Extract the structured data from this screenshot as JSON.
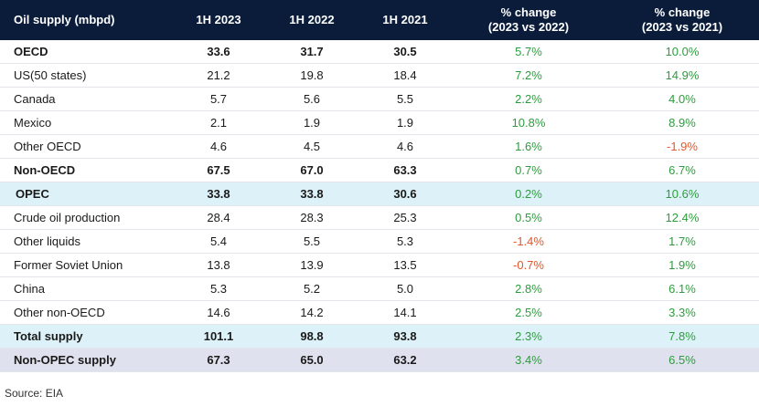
{
  "table": {
    "headers": [
      "Oil supply (mbpd)",
      "1H 2023",
      "1H 2022",
      "1H 2021",
      "% change\n(2023 vs 2022)",
      "% change\n(2023 vs 2021)"
    ],
    "rows": [
      {
        "label": "OECD",
        "v2023": "33.6",
        "v2022": "31.7",
        "v2021": "30.5",
        "chg1": "5.7%",
        "chg2": "10.0%",
        "style": "bold",
        "chg1_dir": "pos",
        "chg2_dir": "pos"
      },
      {
        "label": "US(50 states)",
        "v2023": "21.2",
        "v2022": "19.8",
        "v2021": "18.4",
        "chg1": "7.2%",
        "chg2": "14.9%",
        "style": "normal",
        "chg1_dir": "pos",
        "chg2_dir": "pos"
      },
      {
        "label": "Canada",
        "v2023": "5.7",
        "v2022": "5.6",
        "v2021": "5.5",
        "chg1": "2.2%",
        "chg2": "4.0%",
        "style": "normal",
        "chg1_dir": "pos",
        "chg2_dir": "pos"
      },
      {
        "label": "Mexico",
        "v2023": "2.1",
        "v2022": "1.9",
        "v2021": "1.9",
        "chg1": "10.8%",
        "chg2": "8.9%",
        "style": "normal",
        "chg1_dir": "pos",
        "chg2_dir": "pos"
      },
      {
        "label": "Other OECD",
        "v2023": "4.6",
        "v2022": "4.5",
        "v2021": "4.6",
        "chg1": "1.6%",
        "chg2": "-1.9%",
        "style": "normal",
        "chg1_dir": "pos",
        "chg2_dir": "neg"
      },
      {
        "label": "Non-OECD",
        "v2023": "67.5",
        "v2022": "67.0",
        "v2021": "63.3",
        "chg1": "0.7%",
        "chg2": "6.7%",
        "style": "bold",
        "chg1_dir": "pos",
        "chg2_dir": "pos"
      },
      {
        "label": "OPEC",
        "v2023": "33.8",
        "v2022": "33.8",
        "v2021": "30.6",
        "chg1": "0.2%",
        "chg2": "10.6%",
        "style": "opec",
        "chg1_dir": "pos",
        "chg2_dir": "pos"
      },
      {
        "label": "Crude oil production",
        "v2023": "28.4",
        "v2022": "28.3",
        "v2021": "25.3",
        "chg1": "0.5%",
        "chg2": "12.4%",
        "style": "normal",
        "chg1_dir": "pos",
        "chg2_dir": "pos"
      },
      {
        "label": "Other liquids",
        "v2023": "5.4",
        "v2022": "5.5",
        "v2021": "5.3",
        "chg1": "-1.4%",
        "chg2": "1.7%",
        "style": "normal",
        "chg1_dir": "neg",
        "chg2_dir": "pos"
      },
      {
        "label": "Former Soviet Union",
        "v2023": "13.8",
        "v2022": "13.9",
        "v2021": "13.5",
        "chg1": "-0.7%",
        "chg2": "1.9%",
        "style": "normal",
        "chg1_dir": "neg",
        "chg2_dir": "pos"
      },
      {
        "label": "China",
        "v2023": "5.3",
        "v2022": "5.2",
        "v2021": "5.0",
        "chg1": "2.8%",
        "chg2": "6.1%",
        "style": "normal",
        "chg1_dir": "pos",
        "chg2_dir": "pos"
      },
      {
        "label": "Other non-OECD",
        "v2023": "14.6",
        "v2022": "14.2",
        "v2021": "14.1",
        "chg1": "2.5%",
        "chg2": "3.3%",
        "style": "normal",
        "chg1_dir": "pos",
        "chg2_dir": "pos"
      },
      {
        "label": "Total supply",
        "v2023": "101.1",
        "v2022": "98.8",
        "v2021": "93.8",
        "chg1": "2.3%",
        "chg2": "7.8%",
        "style": "total",
        "chg1_dir": "pos",
        "chg2_dir": "pos"
      },
      {
        "label": "Non-OPEC supply",
        "v2023": "67.3",
        "v2022": "65.0",
        "v2021": "63.2",
        "chg1": "3.4%",
        "chg2": "6.5%",
        "style": "nonopec",
        "chg1_dir": "pos",
        "chg2_dir": "pos"
      }
    ]
  },
  "source": "Source: EIA",
  "colors": {
    "header_bg": "#0b1c3a",
    "positive": "#2e9c3e",
    "negative": "#e2572b",
    "highlight_row": "#ddf2f8",
    "nonopec_row": "#dfe1ee"
  }
}
